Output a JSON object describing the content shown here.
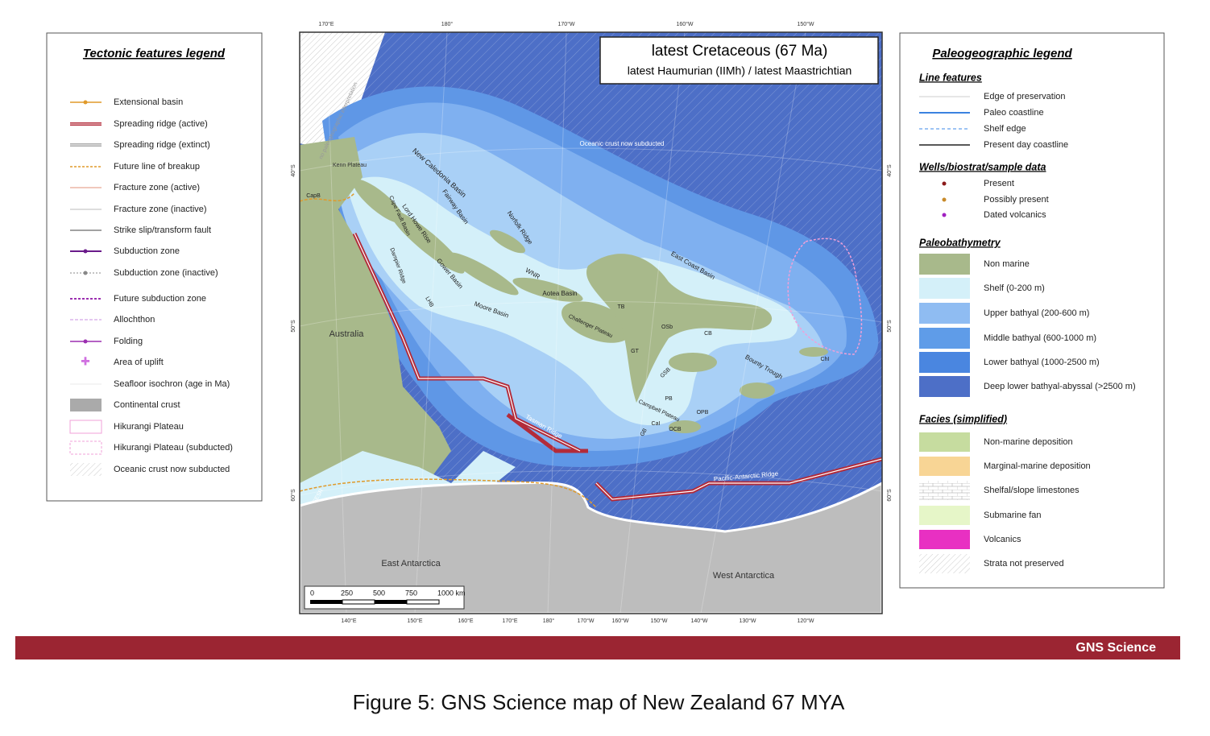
{
  "left_legend": {
    "title": "Tectonic features legend",
    "items": [
      "Extensional basin",
      "Spreading ridge (active)",
      "Spreading ridge (extinct)",
      "Future line of breakup",
      "Fracture zone (active)",
      "Fracture zone (inactive)",
      "Strike slip/transform fault",
      "Subduction zone",
      "Subduction zone (inactive)",
      "Future subduction zone",
      "Allochthon",
      "Folding",
      "Area of uplift",
      "Seafloor isochron (age in Ma)",
      "Continental crust",
      "Hikurangi Plateau",
      "Hikurangi Plateau (subducted)",
      "Oceanic crust now subducted"
    ]
  },
  "map": {
    "title": "latest Cretaceous (67 Ma)",
    "subtitle": "latest Haumurian (IIMh) / latest Maastrichtian",
    "top_lon": [
      "170°E",
      "180°",
      "170°W",
      "160°W",
      "150°W"
    ],
    "bottom_lon": [
      "140°E",
      "150°E",
      "160°E",
      "170°E",
      "180°",
      "170°W",
      "160°W",
      "150°W",
      "140°W",
      "130°W",
      "120°W"
    ],
    "left_lat": [
      "40°S",
      "50°S",
      "60°S"
    ],
    "right_lat": [
      "40°S",
      "50°S",
      "60°S"
    ],
    "labels": [
      "Oceanic crust now subducted",
      "no paleogeographic interpretation",
      "Kenn Plateau",
      "New Caledonia Basin",
      "CapB",
      "Fairway Basin",
      "Norfolk Ridge",
      "Lord Howe Rise",
      "Cape Fault Basin",
      "Dampier Ridge",
      "Gower Basin",
      "LHB",
      "Moore Basin",
      "WNR",
      "Aotea Basin",
      "Challenger Plateau",
      "TB",
      "GT",
      "OSb",
      "CB",
      "East Coast Basin",
      "Bounty Trough",
      "ChI",
      "GSB",
      "PB",
      "Campbell Plateau",
      "OPB",
      "CaI",
      "GB",
      "OCB",
      "Tasman Ridge",
      "Pacific-Antarctic Ridge",
      "SESR",
      "Australia",
      "East Antarctica",
      "West Antarctica"
    ],
    "scale_bar": [
      "0",
      "250",
      "500",
      "750",
      "1000 km"
    ]
  },
  "right_legend": {
    "title": "Paleogeographic legend",
    "sections": [
      {
        "heading": "Line features",
        "items": [
          "Edge of preservation",
          "Paleo coastline",
          "Shelf edge",
          "Present day coastline"
        ]
      },
      {
        "heading": "Wells/biostrat/sample data",
        "items": [
          "Present",
          "Possibly present",
          "Dated volcanics"
        ]
      },
      {
        "heading": "Paleobathymetry",
        "items": [
          "Non marine",
          "Shelf (0-200 m)",
          "Upper bathyal (200-600 m)",
          "Middle bathyal (600-1000 m)",
          "Lower bathyal (1000-2500 m)",
          "Deep lower bathyal-abyssal (>2500 m)"
        ]
      },
      {
        "heading": "Facies (simplified)",
        "items": [
          "Non-marine deposition",
          "Marginal-marine deposition",
          "Shelfal/slope limestones",
          "Submarine fan",
          "Volcanics",
          "Strata not preserved"
        ]
      }
    ]
  },
  "footer": {
    "brand": "GNS Science"
  },
  "caption": "Figure 5: GNS Science map of New Zealand 67 MYA"
}
